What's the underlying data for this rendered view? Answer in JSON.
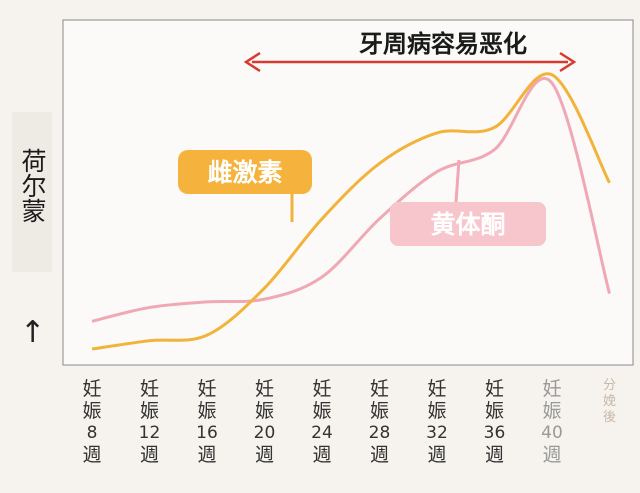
{
  "y_axis_label": "荷尔蒙",
  "y_axis_arrow": "↑",
  "annotation": "牙周病容易恶化",
  "series_labels": {
    "estrogen": "雌激素",
    "progesterone": "黄体酮"
  },
  "colors": {
    "estrogen": "#f2b33a",
    "progesterone": "#f0a8b4",
    "estrogen_label_bg": "#f5b33d",
    "progesterone_label_bg": "#f7c5cc",
    "arrow": "#d9392f"
  },
  "x_ticks": [
    {
      "a": "妊",
      "b": "娠",
      "n": "8",
      "c": "週"
    },
    {
      "a": "妊",
      "b": "娠",
      "n": "12",
      "c": "週"
    },
    {
      "a": "妊",
      "b": "娠",
      "n": "16",
      "c": "週"
    },
    {
      "a": "妊",
      "b": "娠",
      "n": "20",
      "c": "週"
    },
    {
      "a": "妊",
      "b": "娠",
      "n": "24",
      "c": "週"
    },
    {
      "a": "妊",
      "b": "娠",
      "n": "28",
      "c": "週"
    },
    {
      "a": "妊",
      "b": "娠",
      "n": "32",
      "c": "週"
    },
    {
      "a": "妊",
      "b": "娠",
      "n": "36",
      "c": "週"
    },
    {
      "a": "妊",
      "b": "娠",
      "n": "40",
      "c": "週"
    },
    {
      "a": "分",
      "b": "娩",
      "n": "",
      "c": "後"
    }
  ],
  "chart_data": {
    "type": "line",
    "ylabel": "荷尔蒙",
    "categories": [
      "妊娠8週",
      "妊娠12週",
      "妊娠16週",
      "妊娠20週",
      "妊娠24週",
      "妊娠28週",
      "妊娠32週",
      "妊娠36週",
      "妊娠40週",
      "分娩後"
    ],
    "series": [
      {
        "name": "雌激素",
        "values": [
          0.0,
          0.03,
          0.05,
          0.22,
          0.47,
          0.67,
          0.78,
          0.8,
          0.99,
          0.6
        ]
      },
      {
        "name": "黄体酮",
        "values": [
          0.1,
          0.15,
          0.17,
          0.18,
          0.26,
          0.47,
          0.64,
          0.72,
          0.96,
          0.2
        ]
      }
    ],
    "annotation": {
      "text": "牙周病容易恶化",
      "from": "妊娠20週",
      "to": "分娩後"
    },
    "ylim": [
      0,
      1
    ]
  }
}
